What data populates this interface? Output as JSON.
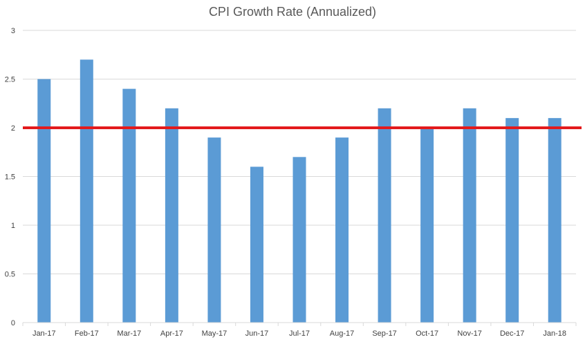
{
  "chart_data": {
    "type": "bar",
    "title": "CPI Growth Rate (Annualized)",
    "xlabel": "",
    "ylabel": "",
    "categories": [
      "Jan-17",
      "Feb-17",
      "Mar-17",
      "Apr-17",
      "May-17",
      "Jun-17",
      "Jul-17",
      "Aug-17",
      "Sep-17",
      "Oct-17",
      "Nov-17",
      "Dec-17",
      "Jan-18"
    ],
    "series": [
      {
        "values": [
          2.5,
          2.7,
          2.4,
          2.2,
          1.9,
          1.6,
          1.7,
          1.9,
          2.2,
          2.0,
          2.2,
          2.1,
          2.1
        ]
      }
    ],
    "ylim": [
      0,
      3
    ],
    "yticks": [
      "0",
      "0.5",
      "1",
      "1.5",
      "2",
      "2.5",
      "3"
    ],
    "reference_line": {
      "value": 2,
      "color": "#e31a1c"
    },
    "grid": true,
    "legend": "none",
    "colors": {
      "bar": "#5b9bd5",
      "reference_line": "#e31a1c",
      "gridline": "#d9d9d9"
    }
  }
}
